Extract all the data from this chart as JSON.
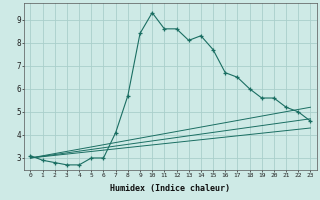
{
  "xlabel": "Humidex (Indice chaleur)",
  "bg_color": "#ceeae6",
  "grid_color": "#aacfcb",
  "line_color": "#1a6e62",
  "xlim": [
    -0.5,
    23.5
  ],
  "ylim": [
    2.5,
    9.7
  ],
  "xticks": [
    0,
    1,
    2,
    3,
    4,
    5,
    6,
    7,
    8,
    9,
    10,
    11,
    12,
    13,
    14,
    15,
    16,
    17,
    18,
    19,
    20,
    21,
    22,
    23
  ],
  "yticks": [
    3,
    4,
    5,
    6,
    7,
    8,
    9
  ],
  "series1_x": [
    0,
    1,
    2,
    3,
    4,
    5,
    6,
    7,
    8,
    9,
    10,
    11,
    12,
    13,
    14,
    15,
    16,
    17,
    18,
    19,
    20,
    21,
    22,
    23
  ],
  "series1_y": [
    3.1,
    2.9,
    2.8,
    2.7,
    2.7,
    3.0,
    3.0,
    4.1,
    5.7,
    8.4,
    9.3,
    8.6,
    8.6,
    8.1,
    8.3,
    7.7,
    6.7,
    6.5,
    6.0,
    5.6,
    5.6,
    5.2,
    5.0,
    4.6
  ],
  "series2_x": [
    0,
    23
  ],
  "series2_y": [
    3.0,
    4.3
  ],
  "series3_x": [
    0,
    23
  ],
  "series3_y": [
    3.0,
    5.2
  ],
  "series4_x": [
    0,
    23
  ],
  "series4_y": [
    3.0,
    4.7
  ]
}
